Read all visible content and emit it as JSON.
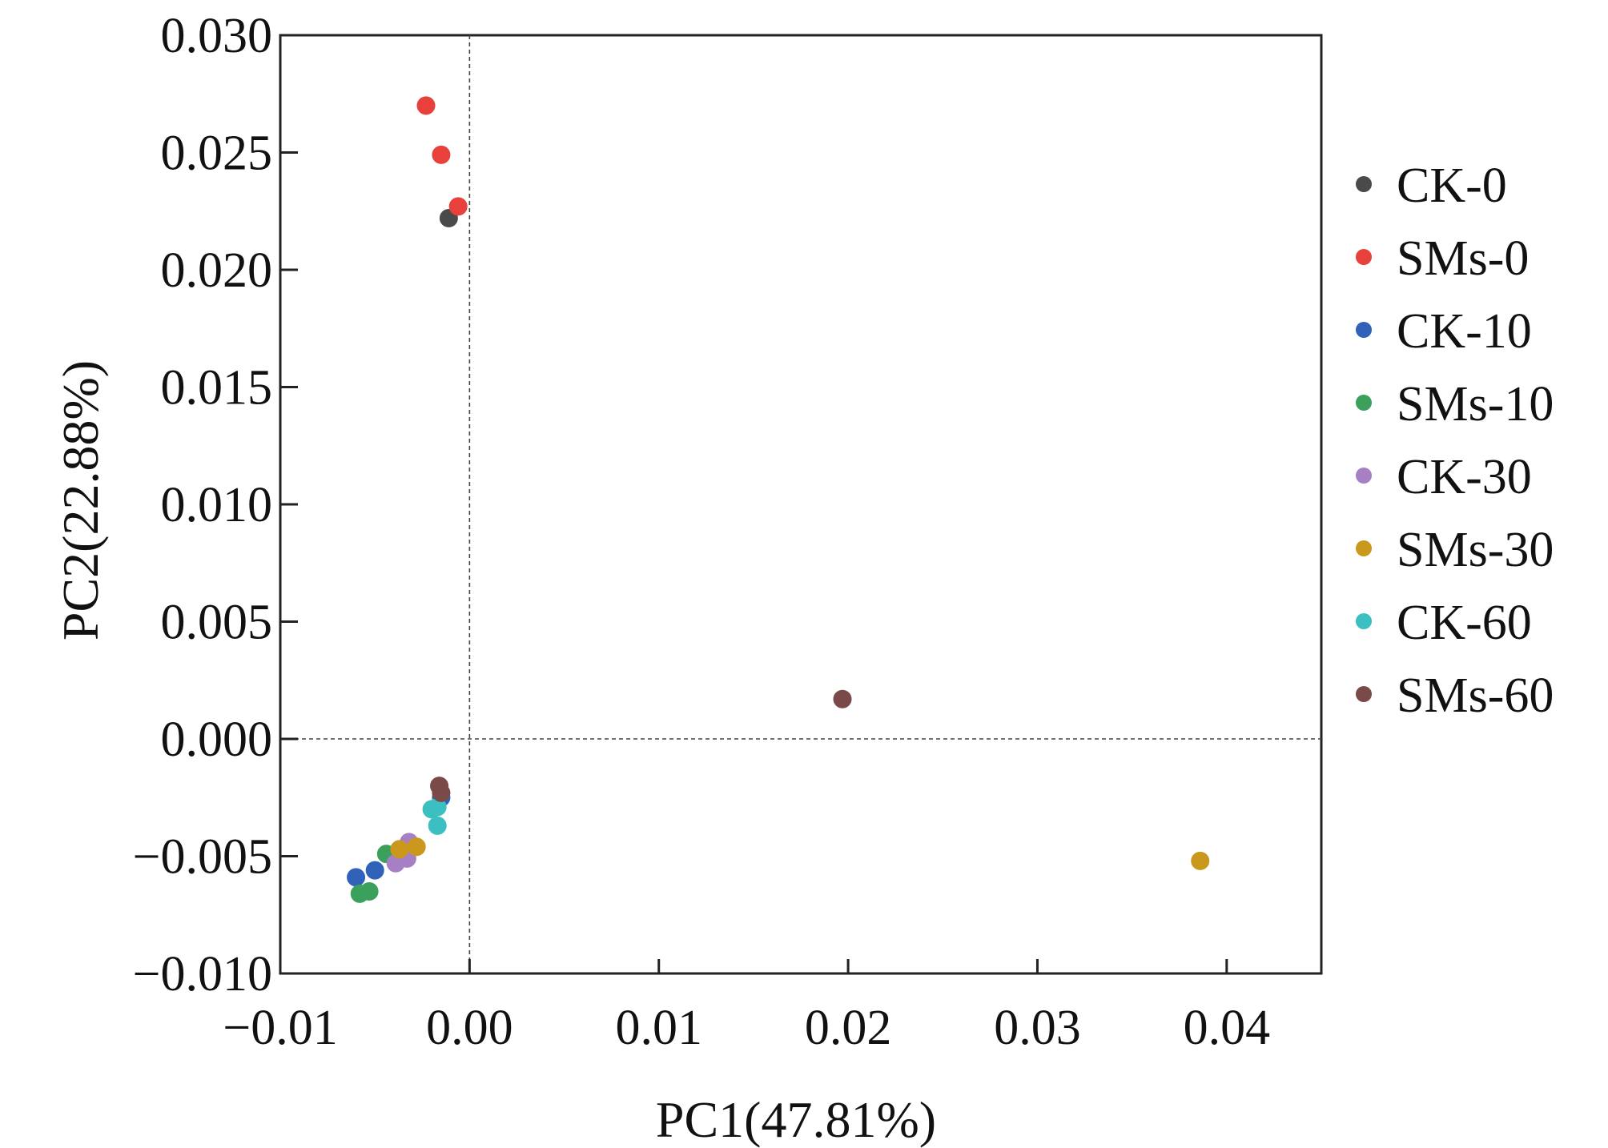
{
  "chart_data": {
    "type": "scatter",
    "xlabel": "PC1(47.81%)",
    "ylabel": "PC2(22.88%)",
    "xlim": [
      -0.01,
      0.045
    ],
    "ylim": [
      -0.01,
      0.03
    ],
    "x_ticks": [
      -0.01,
      0.0,
      0.01,
      0.02,
      0.03,
      0.04
    ],
    "x_tick_labels": [
      "−0.01",
      "0.00",
      "0.01",
      "0.02",
      "0.03",
      "0.04"
    ],
    "y_ticks": [
      -0.01,
      -0.005,
      0.0,
      0.005,
      0.01,
      0.015,
      0.02,
      0.025,
      0.03
    ],
    "y_tick_labels": [
      "−0.010",
      "−0.005",
      "0.000",
      "0.005",
      "0.010",
      "0.015",
      "0.020",
      "0.025",
      "0.030"
    ],
    "reference_lines": {
      "x": 0,
      "y": 0,
      "style": "dashed"
    },
    "grid": false,
    "legend_position": "right",
    "series": [
      {
        "name": "CK-0",
        "color": "#4a4a4a",
        "points": [
          [
            -0.0011,
            0.0222
          ]
        ]
      },
      {
        "name": "SMs-0",
        "color": "#e8403a",
        "points": [
          [
            -0.0023,
            0.027
          ],
          [
            -0.0015,
            0.0249
          ],
          [
            -0.0006,
            0.0227
          ]
        ]
      },
      {
        "name": "CK-10",
        "color": "#2f62b8",
        "points": [
          [
            -0.006,
            -0.0059
          ],
          [
            -0.005,
            -0.0056
          ],
          [
            -0.0015,
            -0.0025
          ]
        ]
      },
      {
        "name": "SMs-10",
        "color": "#3aa05c",
        "points": [
          [
            -0.0058,
            -0.0066
          ],
          [
            -0.0053,
            -0.0065
          ],
          [
            -0.0044,
            -0.0049
          ]
        ]
      },
      {
        "name": "CK-30",
        "color": "#a67fc4",
        "points": [
          [
            -0.0039,
            -0.0053
          ],
          [
            -0.0033,
            -0.0051
          ],
          [
            -0.0032,
            -0.0044
          ]
        ]
      },
      {
        "name": "SMs-30",
        "color": "#c9981c",
        "points": [
          [
            -0.0037,
            -0.0047
          ],
          [
            -0.0028,
            -0.0046
          ],
          [
            0.0386,
            -0.0052
          ]
        ]
      },
      {
        "name": "CK-60",
        "color": "#3cbfc0",
        "points": [
          [
            -0.002,
            -0.003
          ],
          [
            -0.0017,
            -0.0029
          ],
          [
            -0.0017,
            -0.0037
          ]
        ]
      },
      {
        "name": "SMs-60",
        "color": "#7a4a48",
        "points": [
          [
            -0.0016,
            -0.002
          ],
          [
            -0.0015,
            -0.0023
          ],
          [
            0.0197,
            0.0017
          ]
        ]
      }
    ]
  }
}
